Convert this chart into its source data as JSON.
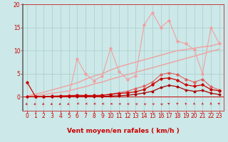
{
  "x": [
    0,
    1,
    2,
    3,
    4,
    5,
    6,
    7,
    8,
    9,
    10,
    11,
    12,
    13,
    14,
    15,
    16,
    17,
    18,
    19,
    20,
    21,
    22,
    23
  ],
  "line_spiky_light": [
    0,
    0,
    0,
    0,
    0.2,
    0.3,
    8.2,
    5.0,
    3.5,
    4.5,
    10.5,
    5.5,
    3.8,
    4.5,
    15.5,
    18.2,
    15.0,
    16.5,
    12.0,
    11.5,
    10.2,
    5.0,
    15.0,
    11.5
  ],
  "line_upper_ref": [
    0.2,
    0.6,
    1.0,
    1.5,
    2.0,
    2.5,
    3.0,
    3.8,
    4.5,
    5.0,
    5.8,
    6.5,
    7.0,
    7.5,
    8.0,
    8.5,
    9.0,
    9.5,
    10.0,
    10.2,
    10.5,
    10.8,
    11.0,
    11.5
  ],
  "line_lower_ref": [
    0.1,
    0.3,
    0.5,
    0.8,
    1.0,
    1.3,
    1.8,
    2.2,
    2.8,
    3.2,
    3.8,
    4.3,
    4.8,
    5.3,
    5.8,
    6.3,
    6.8,
    7.3,
    7.8,
    8.3,
    8.8,
    9.3,
    9.8,
    10.3
  ],
  "line_medium_spiky": [
    0,
    0,
    0,
    0.1,
    0.1,
    0.15,
    0.25,
    0.2,
    0.25,
    0.3,
    0.6,
    0.9,
    1.2,
    1.8,
    2.3,
    3.2,
    4.8,
    5.2,
    4.8,
    3.8,
    3.2,
    3.8,
    2.2,
    1.5
  ],
  "line_dark1": [
    3.2,
    0.1,
    0.05,
    0.15,
    0.2,
    0.25,
    0.35,
    0.3,
    0.3,
    0.35,
    0.55,
    0.75,
    0.85,
    1.1,
    1.6,
    2.6,
    3.9,
    4.1,
    3.6,
    2.6,
    2.3,
    2.6,
    1.6,
    1.3
  ],
  "line_dark2": [
    0.05,
    0.02,
    0.02,
    0.05,
    0.05,
    0.05,
    0.08,
    0.08,
    0.08,
    0.1,
    0.18,
    0.25,
    0.35,
    0.55,
    0.85,
    1.2,
    2.0,
    2.5,
    2.2,
    1.5,
    1.2,
    1.4,
    0.8,
    0.5
  ],
  "bg_color": "#cce8e8",
  "grid_color": "#aacccc",
  "col_light": "#f0a0a0",
  "col_medium": "#e06060",
  "col_dark": "#cc0000",
  "col_darkest": "#aa0000",
  "xlabel": "Vent moyen/en rafales ( km/h )",
  "ylim": [
    -3,
    20
  ],
  "xlim": [
    -0.5,
    23.5
  ],
  "yticks": [
    0,
    5,
    10,
    15,
    20
  ],
  "xticks": [
    0,
    1,
    2,
    3,
    4,
    5,
    6,
    7,
    8,
    9,
    10,
    11,
    12,
    13,
    14,
    15,
    16,
    17,
    18,
    19,
    20,
    21,
    22,
    23
  ],
  "tick_fontsize": 5.5,
  "xlabel_fontsize": 6.5
}
